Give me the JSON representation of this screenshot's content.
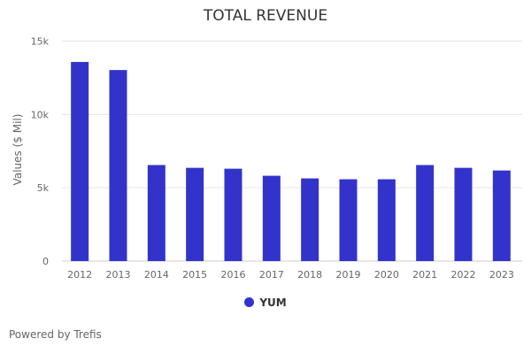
{
  "chart_data": {
    "type": "bar",
    "title": "TOTAL REVENUE",
    "ylabel": "Values ($ Mil)",
    "xlabel": "",
    "categories": [
      "2012",
      "2013",
      "2014",
      "2015",
      "2016",
      "2017",
      "2018",
      "2019",
      "2020",
      "2021",
      "2022",
      "2023"
    ],
    "series": [
      {
        "name": "YUM",
        "values": [
          13580,
          13030,
          6550,
          6360,
          6300,
          5820,
          5640,
          5580,
          5580,
          6550,
          6360,
          6180
        ]
      }
    ],
    "ylim": [
      0,
      15000
    ],
    "yticks": [
      0,
      5000,
      10000,
      15000
    ],
    "ytick_labels": [
      "0",
      "5k",
      "10k",
      "15k"
    ],
    "grid": true,
    "legend_position": "bottom",
    "colors": {
      "bar": "#3333cc",
      "grid": "#e6e6e6"
    }
  },
  "footer": {
    "credit": "Powered by Trefis"
  }
}
